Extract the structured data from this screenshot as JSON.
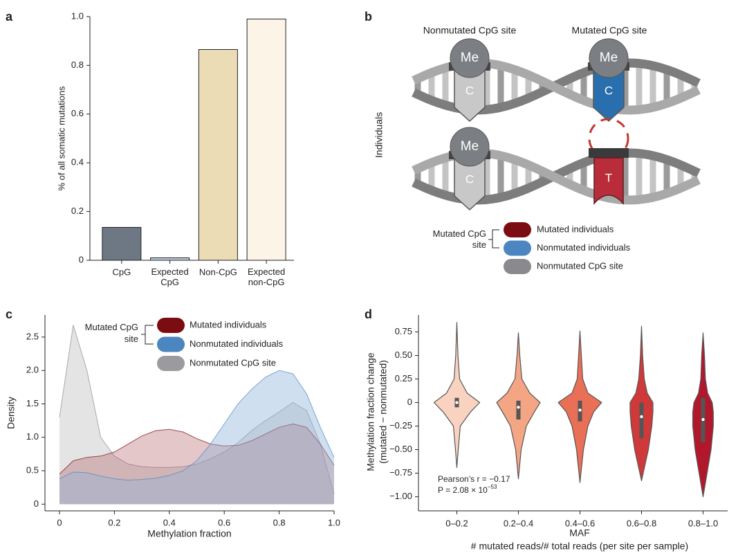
{
  "chart_data": [
    {
      "panel": "a",
      "type": "bar",
      "categories": [
        "CpG",
        "Expected\nCpG",
        "Non-CpG",
        "Expected\nnon-CpG"
      ],
      "values": [
        0.135,
        0.01,
        0.865,
        0.99
      ],
      "colors": [
        "#6d7884",
        "#bcd0e6",
        "#ebdcb6",
        "#fcf4e7"
      ],
      "ylabel": "% of all somatic mutations",
      "ylim": [
        0,
        1
      ],
      "yticks": [
        0,
        0.2,
        0.4,
        0.6,
        0.8,
        {
          "value": 1,
          "label": "1.0"
        }
      ]
    },
    {
      "panel": "c",
      "type": "area",
      "xlabel": "Methylation fraction",
      "ylabel": "Density",
      "legend_group": "Mutated CpG\nsite",
      "x": [
        0,
        0.05,
        0.1,
        0.15,
        0.2,
        0.25,
        0.3,
        0.35,
        0.4,
        0.45,
        0.5,
        0.55,
        0.6,
        0.65,
        0.7,
        0.75,
        0.8,
        0.85,
        0.9,
        0.95,
        1
      ],
      "series": [
        {
          "name": "Mutated individuals",
          "color": "#7a0c12",
          "values": [
            0.45,
            0.65,
            0.7,
            0.72,
            0.78,
            0.9,
            1.02,
            1.1,
            1.12,
            1.08,
            0.98,
            0.9,
            0.87,
            0.88,
            0.95,
            1.05,
            1.15,
            1.2,
            1.15,
            0.9,
            0.58
          ]
        },
        {
          "name": "Nonmutated individuals",
          "color": "#4b86c0",
          "values": [
            0.38,
            0.48,
            0.47,
            0.42,
            0.38,
            0.36,
            0.37,
            0.39,
            0.43,
            0.5,
            0.65,
            0.9,
            1.2,
            1.5,
            1.72,
            1.9,
            2,
            1.95,
            1.65,
            1.15,
            0.7
          ]
        },
        {
          "name": "Nonmutated CpG site",
          "color": "#8a8a8e",
          "values": [
            1.3,
            2.68,
            2,
            1,
            0.72,
            0.6,
            0.56,
            0.55,
            0.55,
            0.56,
            0.6,
            0.68,
            0.78,
            0.92,
            1.1,
            1.25,
            1.38,
            1.52,
            1.4,
            0.9,
            0.15
          ]
        }
      ],
      "xlim": [
        -0.053,
        1
      ],
      "xticks": [
        0,
        0.2,
        0.4,
        0.6,
        0.8,
        {
          "value": 1,
          "label": "1.0"
        }
      ],
      "ylim": [
        -0.1,
        2.83
      ],
      "yticks": [
        0,
        0.5,
        {
          "value": 1,
          "label": "1.0"
        },
        1.5,
        {
          "value": 2,
          "label": "2.0"
        },
        2.5
      ]
    },
    {
      "panel": "d",
      "type": "violin",
      "categories": [
        "0–0.2",
        "0.2–0.4",
        "0.4–0.6",
        "0.6–0.8",
        "0.8–1.0"
      ],
      "ylabel": [
        "Methylation fraction change",
        "(mutated − nonmutated)"
      ],
      "xlabel": "MAF",
      "xlabel2": "# mutated reads/# total reads (per site per sample)",
      "annotation": "Pearson’s r = −0.17",
      "p_text": "P = 2.08 × 10",
      "p_exponent": "−53",
      "violins": [
        {
          "color": "#f9d3bf",
          "y": [
            0.85,
            0.5,
            0.25,
            0.1,
            0,
            -0.1,
            -0.25,
            -0.5,
            -0.69
          ],
          "density": [
            0,
            0.05,
            0.12,
            0.45,
            1,
            0.6,
            0.15,
            0.06,
            0
          ],
          "q1": -0.05,
          "median": 0,
          "q3": 0.05
        },
        {
          "color": "#f4a584",
          "y": [
            0.74,
            0.5,
            0.25,
            0.1,
            0,
            -0.1,
            -0.25,
            -0.5,
            -0.81
          ],
          "density": [
            0,
            0.06,
            0.15,
            0.5,
            0.95,
            0.7,
            0.35,
            0.12,
            0
          ],
          "q1": -0.18,
          "median": -0.05,
          "q3": 0.02
        },
        {
          "color": "#e96f56",
          "y": [
            0.76,
            0.5,
            0.25,
            0.1,
            0,
            -0.1,
            -0.25,
            -0.5,
            -0.85
          ],
          "density": [
            0,
            0.06,
            0.12,
            0.35,
            0.95,
            0.6,
            0.35,
            0.15,
            0
          ],
          "q1": -0.2,
          "median": -0.08,
          "q3": 0.02
        },
        {
          "color": "#d0393a",
          "y": [
            0.81,
            0.5,
            0.25,
            0.1,
            0,
            -0.1,
            -0.25,
            -0.5,
            -0.83
          ],
          "density": [
            0,
            0.05,
            0.12,
            0.25,
            0.5,
            0.5,
            0.45,
            0.3,
            0
          ],
          "q1": -0.38,
          "median": -0.15,
          "q3": 0
        },
        {
          "color": "#b2182b",
          "y": [
            0.74,
            0.5,
            0.25,
            0.1,
            0,
            -0.1,
            -0.25,
            -0.5,
            -1
          ],
          "density": [
            0,
            0.06,
            0.1,
            0.2,
            0.4,
            0.45,
            0.45,
            0.35,
            0
          ],
          "q1": -0.42,
          "median": -0.18,
          "q3": 0.05
        }
      ],
      "ylim": [
        -1.15,
        0.93
      ],
      "yticks": [
        0.75,
        {
          "value": 0.5,
          "label": "0.50"
        },
        0.25,
        0,
        {
          "value": -0.25,
          "label": "−0.25"
        },
        {
          "value": -0.5,
          "label": "−0.50"
        },
        {
          "value": -0.75,
          "label": "−0.75"
        },
        {
          "value": -1,
          "label": "−1.00"
        }
      ]
    }
  ],
  "diagram": {
    "panel": "b",
    "columns": [
      "Nonmutated CpG site",
      "Mutated CpG site"
    ],
    "row_label": "Individuals",
    "rows": [
      [
        {
          "cap": "Me",
          "base": "C"
        },
        {
          "cap": "Me",
          "base": "C"
        }
      ],
      [
        {
          "cap": "Me",
          "base": "C"
        },
        {
          "base": "T"
        }
      ]
    ],
    "legend": {
      "group": "Mutated CpG\nsite",
      "items": [
        "Mutated individuals",
        "Nonmutated individuals",
        "Nonmutated CpG site"
      ]
    }
  }
}
